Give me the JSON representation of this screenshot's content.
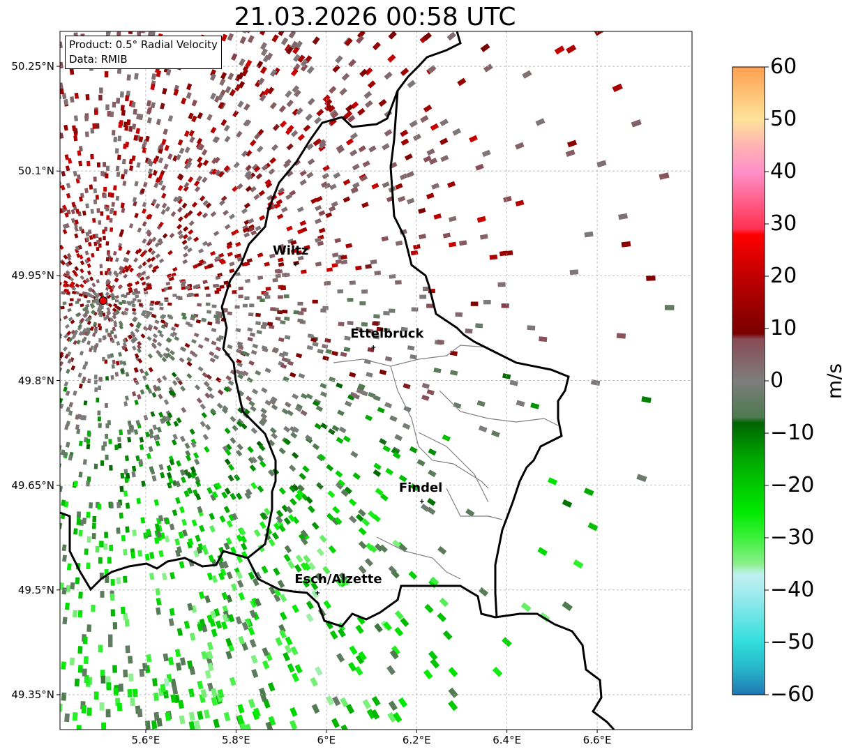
{
  "title": "21.03.2026 00:58 UTC",
  "info": {
    "product": "Product: 0.5° Radial Velocity",
    "source": "Data: RMIB"
  },
  "axes": {
    "lon_range": [
      5.41,
      6.81
    ],
    "lat_range": [
      49.3,
      50.3
    ],
    "x_ticks": [
      {
        "value": 5.6,
        "label": "5.6°E"
      },
      {
        "value": 5.8,
        "label": "5.8°E"
      },
      {
        "value": 6.0,
        "label": "6°E"
      },
      {
        "value": 6.2,
        "label": "6.2°E"
      },
      {
        "value": 6.4,
        "label": "6.4°E"
      },
      {
        "value": 6.6,
        "label": "6.6°E"
      }
    ],
    "y_ticks": [
      {
        "value": 50.25,
        "label": "50.25°N"
      },
      {
        "value": 50.1,
        "label": "50.1°N"
      },
      {
        "value": 49.95,
        "label": "49.95°N"
      },
      {
        "value": 49.8,
        "label": "49.8°N"
      },
      {
        "value": 49.65,
        "label": "49.65°N"
      },
      {
        "value": 49.5,
        "label": "49.5°N"
      },
      {
        "value": 49.35,
        "label": "49.35°N"
      }
    ]
  },
  "radar_site": {
    "name": "radar",
    "lon": 5.5056,
    "lat": 49.9144,
    "color": "#e8000b"
  },
  "cities": [
    {
      "name": "Wiltz",
      "lon": 5.9322,
      "lat": 49.9667
    },
    {
      "name": "Ettelbruck",
      "lon": 6.1042,
      "lat": 49.8475
    },
    {
      "name": "Findel",
      "lon": 6.2117,
      "lat": 49.6269
    },
    {
      "name": "Esch/Alzette",
      "lon": 5.9806,
      "lat": 49.4958
    }
  ],
  "colorbar": {
    "unit": "m/s",
    "min": -60,
    "max": 60,
    "ticks": [
      {
        "value": 60,
        "label": "60"
      },
      {
        "value": 50,
        "label": "50"
      },
      {
        "value": 40,
        "label": "40"
      },
      {
        "value": 30,
        "label": "30"
      },
      {
        "value": 20,
        "label": "20"
      },
      {
        "value": 10,
        "label": "10"
      },
      {
        "value": 0,
        "label": "0"
      },
      {
        "value": -10,
        "label": "−10"
      },
      {
        "value": -20,
        "label": "−20"
      },
      {
        "value": -30,
        "label": "−30"
      },
      {
        "value": -40,
        "label": "−40"
      },
      {
        "value": -50,
        "label": "−50"
      },
      {
        "value": -60,
        "label": "−60"
      }
    ],
    "stops": [
      {
        "v": -60,
        "c": "#1f77b4"
      },
      {
        "v": -55,
        "c": "#27b5c9"
      },
      {
        "v": -50,
        "c": "#30dddd"
      },
      {
        "v": -40,
        "c": "#a8ecee"
      },
      {
        "v": -37,
        "c": "#bff0f0"
      },
      {
        "v": -35,
        "c": "#8cf08c"
      },
      {
        "v": -30,
        "c": "#3cf03c"
      },
      {
        "v": -25,
        "c": "#00ea00"
      },
      {
        "v": -15,
        "c": "#00a800"
      },
      {
        "v": -8,
        "c": "#006400"
      },
      {
        "v": -7,
        "c": "#4d7a4d"
      },
      {
        "v": 0,
        "c": "#7d7d7d"
      },
      {
        "v": 8,
        "c": "#8a4b55"
      },
      {
        "v": 9,
        "c": "#7a0000"
      },
      {
        "v": 20,
        "c": "#c00000"
      },
      {
        "v": 28,
        "c": "#ff0000"
      },
      {
        "v": 29,
        "c": "#ff3050"
      },
      {
        "v": 40,
        "c": "#ff90c8"
      },
      {
        "v": 45,
        "c": "#ffb4b4"
      },
      {
        "v": 50,
        "c": "#ffe29a"
      },
      {
        "v": 60,
        "c": "#ffa050"
      }
    ]
  },
  "colors": {
    "border": "#000000",
    "canton": "#808080",
    "grid": "#b0b0b0"
  }
}
